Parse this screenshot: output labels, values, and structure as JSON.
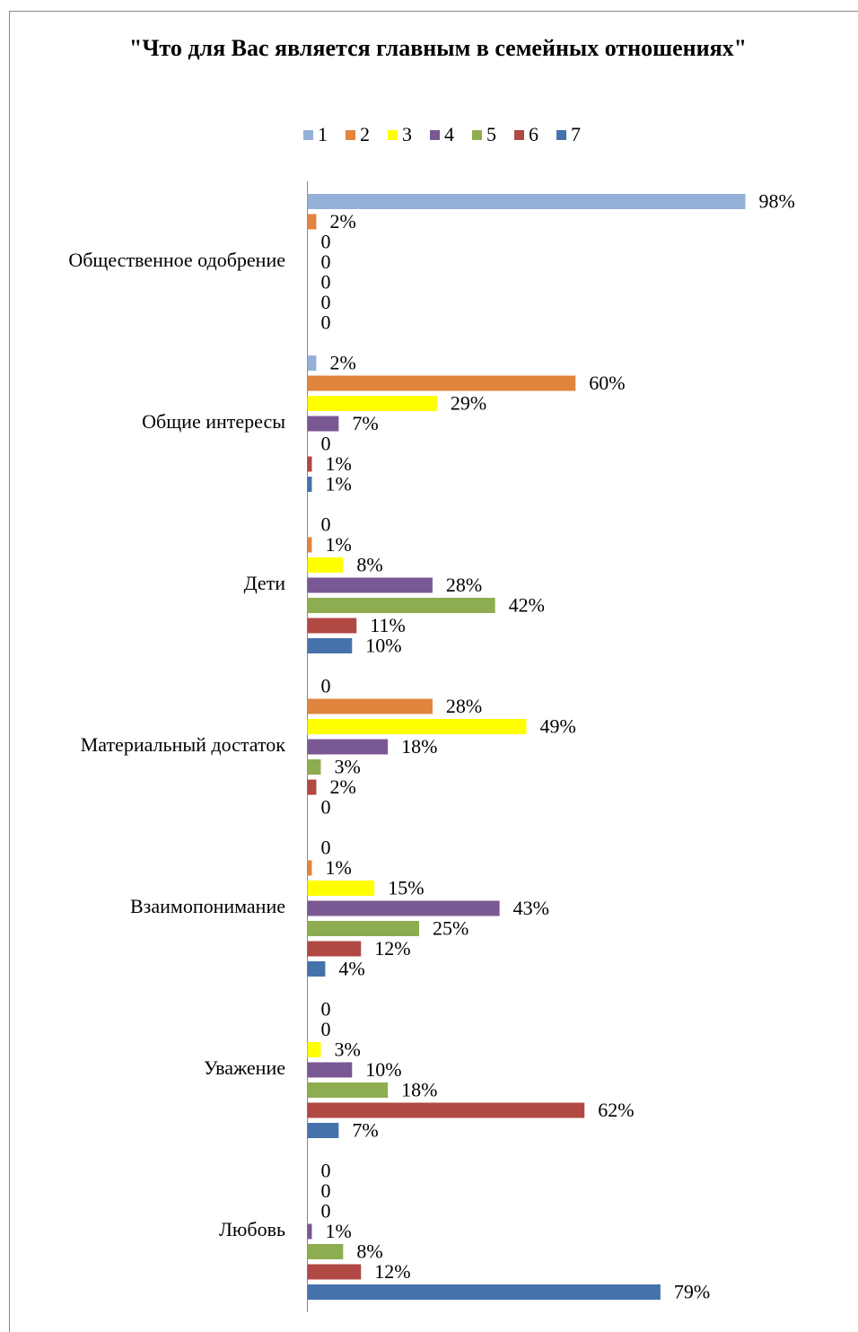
{
  "chart_data": {
    "type": "bar",
    "orientation": "horizontal",
    "title": "\"Что для Вас является главным в семейных отношениях\"",
    "categories": [
      "Общественное одобрение",
      "Общие интересы",
      "Дети",
      "Материальный достаток",
      "Взаимопонимание",
      "Уважение",
      "Любовь"
    ],
    "xlim": [
      0,
      100
    ],
    "legend": "top",
    "series": [
      {
        "name": "1",
        "color": "#95b0d8",
        "values": [
          98,
          2,
          0,
          0,
          0,
          0,
          0
        ],
        "value_labels": [
          "98%",
          "2%",
          "0",
          "0",
          "0",
          "0",
          "0"
        ]
      },
      {
        "name": "2",
        "color": "#e0843e",
        "values": [
          2,
          60,
          1,
          28,
          1,
          0,
          0
        ],
        "value_labels": [
          "2%",
          "60%",
          "1%",
          "28%",
          "1%",
          "0",
          "0"
        ]
      },
      {
        "name": "3",
        "color": "#ffff00",
        "values": [
          0,
          29,
          8,
          49,
          15,
          3,
          0
        ],
        "value_labels": [
          "0",
          "29%",
          "8%",
          "49%",
          "15%",
          "3%",
          "0"
        ]
      },
      {
        "name": "4",
        "color": "#7a5894",
        "values": [
          0,
          7,
          28,
          18,
          43,
          10,
          1
        ],
        "value_labels": [
          "0",
          "7%",
          "28%",
          "18%",
          "43%",
          "10%",
          "1%"
        ]
      },
      {
        "name": "5",
        "color": "#8eac50",
        "values": [
          0,
          0,
          42,
          3,
          25,
          18,
          8
        ],
        "value_labels": [
          "0",
          "0",
          "42%",
          "3%",
          "25%",
          "18%",
          "8%"
        ]
      },
      {
        "name": "6",
        "color": "#b04844",
        "values": [
          0,
          1,
          11,
          2,
          12,
          62,
          12
        ],
        "value_labels": [
          "0",
          "1%",
          "11%",
          "2%",
          "12%",
          "62%",
          "12%"
        ]
      },
      {
        "name": "7",
        "color": "#4672ac",
        "values": [
          0,
          1,
          10,
          0,
          4,
          7,
          79
        ],
        "value_labels": [
          "0",
          "1%",
          "10%",
          "0",
          "4%",
          "7%",
          "79%"
        ]
      }
    ]
  }
}
